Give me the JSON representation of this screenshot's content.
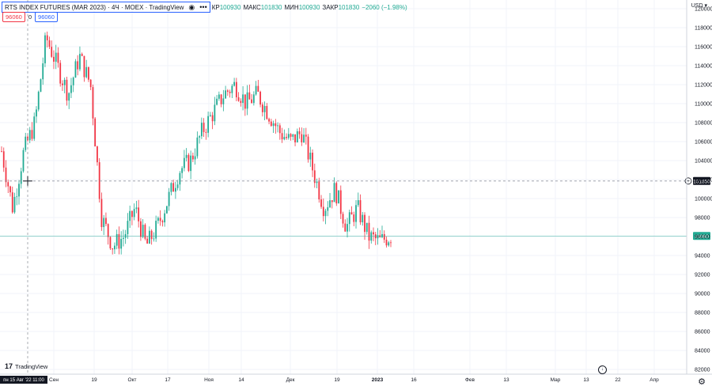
{
  "legend": {
    "title": "RTS INDEX FUTURES (MAR 2023) · 4Ч · MOEX · TradingView",
    "eye_icon": "eye-icon",
    "more_icon": "more-icon",
    "ohlc": [
      {
        "label": "КР",
        "value": "100930"
      },
      {
        "label": "МАКС",
        "value": "101830"
      },
      {
        "label": "МИН",
        "value": "100930"
      },
      {
        "label": "ЗАКР",
        "value": "101830"
      }
    ],
    "change": "−2060 (−1.98%)"
  },
  "price_buttons": {
    "sell": "96060",
    "spread": "0",
    "buy": "96060"
  },
  "currency_label": "USD ▾",
  "watermark": "TradingView",
  "crosshair": {
    "price_label": "101850",
    "time_label": "пн 15 Авг '22   11:00"
  },
  "last_price_label": "96060",
  "icons": {
    "goto_realtime": "goto-realtime-icon",
    "settings": "gear-icon",
    "crosshair_add": "plus-circle-icon"
  },
  "colors": {
    "up": "#22ab94",
    "down": "#f23645",
    "grid": "#f0f3fa",
    "crosshair": "#9598a1",
    "last_price": "#22ab94"
  },
  "chart_data": {
    "type": "candlestick",
    "title": "RTS INDEX FUTURES (MAR 2023) · 4Ч · MOEX",
    "y_axis": {
      "side": "right",
      "range": [
        81500,
        122000
      ],
      "ticks": [
        "120000",
        "118000",
        "116000",
        "114000",
        "112000",
        "110000",
        "108000",
        "106000",
        "104000",
        "102000",
        "100000",
        "98000",
        "96000",
        "94000",
        "92000",
        "90000",
        "88000",
        "86000",
        "84000",
        "82000"
      ]
    },
    "x_axis": {
      "ticks": [
        "Сен",
        "19",
        "Окт",
        "17",
        "Ноя",
        "14",
        "Дек",
        "19",
        "2023",
        "16",
        "Фев",
        "13",
        "Мар",
        "13",
        "22",
        "Апр"
      ]
    },
    "crosshair_price": 101850,
    "last_price": 96060,
    "grid": true,
    "series": [
      {
        "t": "Aug",
        "price": 105000
      },
      {
        "t": "Aug 19",
        "price": 99000
      },
      {
        "t": "Aug 26",
        "price": 105000
      },
      {
        "t": "Sep 01",
        "price": 108000
      },
      {
        "t": "Sep 05",
        "price": 117000
      },
      {
        "t": "Sep 12",
        "price": 114000
      },
      {
        "t": "Sep 16",
        "price": 111000
      },
      {
        "t": "Sep 19",
        "price": 115000
      },
      {
        "t": "Sep 22",
        "price": 112000
      },
      {
        "t": "Sep 26",
        "price": 98000
      },
      {
        "t": "Sep 29",
        "price": 95000
      },
      {
        "t": "Oct 03",
        "price": 96000
      },
      {
        "t": "Oct 07",
        "price": 99000
      },
      {
        "t": "Oct 11",
        "price": 95000
      },
      {
        "t": "Oct 14",
        "price": 97000
      },
      {
        "t": "Oct 17",
        "price": 100000
      },
      {
        "t": "Oct 21",
        "price": 103000
      },
      {
        "t": "Oct 26",
        "price": 104000
      },
      {
        "t": "Oct 31",
        "price": 107000
      },
      {
        "t": "Nov 04",
        "price": 109000
      },
      {
        "t": "Nov 09",
        "price": 111000
      },
      {
        "t": "Nov 14",
        "price": 112000
      },
      {
        "t": "Nov 18",
        "price": 110000
      },
      {
        "t": "Nov 23",
        "price": 111000
      },
      {
        "t": "Nov 28",
        "price": 109000
      },
      {
        "t": "Dec 02",
        "price": 107000
      },
      {
        "t": "Dec 07",
        "price": 106000
      },
      {
        "t": "Dec 12",
        "price": 107000
      },
      {
        "t": "Dec 16",
        "price": 103000
      },
      {
        "t": "Dec 20",
        "price": 99000
      },
      {
        "t": "Dec 23",
        "price": 101000
      },
      {
        "t": "Dec 27",
        "price": 97000
      },
      {
        "t": "Dec 30",
        "price": 99000
      },
      {
        "t": "Jan 04",
        "price": 96000
      },
      {
        "t": "Jan 06",
        "price": 95500
      },
      {
        "t": "Jan 09",
        "price": 96060
      }
    ]
  }
}
